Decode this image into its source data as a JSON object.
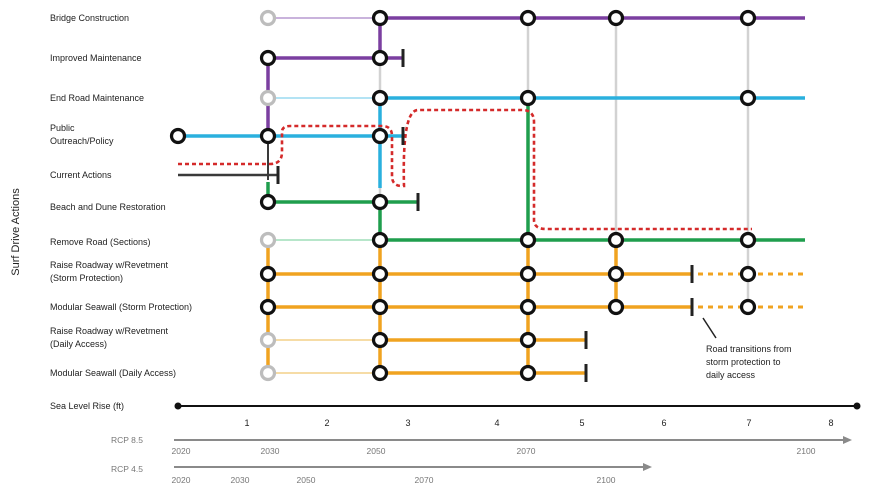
{
  "y_axis_title": "Surf Drive Actions",
  "actions": [
    {
      "label_lines": [
        "Bridge Construction"
      ]
    },
    {
      "label_lines": [
        "Improved Maintenance"
      ]
    },
    {
      "label_lines": [
        "End Road Maintenance"
      ]
    },
    {
      "label_lines": [
        "Public",
        "Outreach/Policy"
      ]
    },
    {
      "label_lines": [
        "Current Actions"
      ]
    },
    {
      "label_lines": [
        "Beach and Dune Restoration"
      ]
    },
    {
      "label_lines": [
        "Remove Road (Sections)"
      ]
    },
    {
      "label_lines": [
        "Raise Roadway w/Revetment",
        "(Storm Protection)"
      ]
    },
    {
      "label_lines": [
        "Modular Seawall (Storm Protection)"
      ]
    },
    {
      "label_lines": [
        "Raise Roadway w/Revetment",
        "(Daily Access)"
      ]
    },
    {
      "label_lines": [
        "Modular Seawall (Daily Access)"
      ]
    }
  ],
  "sea_level_rise": {
    "label": "Sea Level Rise (ft)",
    "ticks": [
      "1",
      "2",
      "3",
      "4",
      "5",
      "6",
      "7",
      "8"
    ]
  },
  "scenarios": [
    {
      "label": "RCP 8.5",
      "years": [
        "2020",
        "2030",
        "2050",
        "2070",
        "2100"
      ]
    },
    {
      "label": "RCP 4.5",
      "years": [
        "2020",
        "2030",
        "2050",
        "2070",
        "2100"
      ]
    }
  ],
  "callout": {
    "lines": [
      "Road transitions from",
      "storm protection to",
      "daily access"
    ]
  },
  "colors": {
    "purple": "#7b3fa0",
    "blue": "#2ab0de",
    "green": "#1f9e4d",
    "orange": "#f0a320",
    "dark": "#3a3a3a",
    "red_dotted": "#d42a2a",
    "grid": "#d2d2d2"
  }
}
